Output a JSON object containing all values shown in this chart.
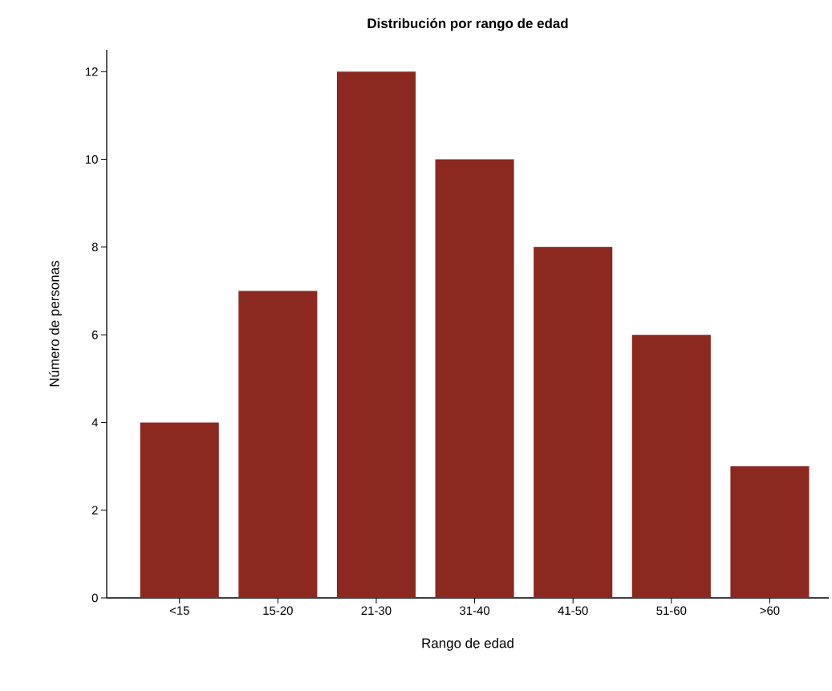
{
  "chart_data": {
    "type": "bar",
    "title": "Distribución por rango de edad",
    "xlabel": "Rango de edad",
    "ylabel": "Número de personas",
    "categories": [
      "<15",
      "15-20",
      "21-30",
      "31-40",
      "41-50",
      "51-60",
      ">60"
    ],
    "values": [
      4,
      7,
      12,
      10,
      8,
      6,
      3
    ],
    "color": "#8b2820",
    "ylim": [
      0,
      12.5
    ],
    "yticks": [
      0,
      2,
      4,
      6,
      8,
      10,
      12
    ]
  }
}
